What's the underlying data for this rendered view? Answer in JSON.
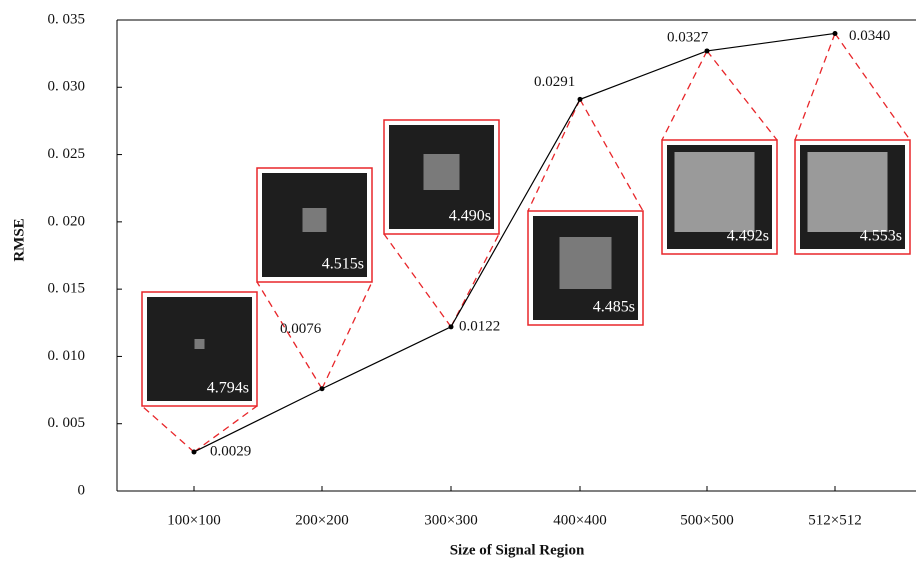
{
  "chart_data": {
    "type": "line",
    "x_label": "Size of Signal Region",
    "y_label": "RMSE",
    "categories": [
      "100×100",
      "200×200",
      "300×300",
      "400×400",
      "500×500",
      "512×512"
    ],
    "values": [
      0.0029,
      0.0076,
      0.0122,
      0.0291,
      0.0327,
      0.034
    ],
    "value_labels": [
      "0.0029",
      "0.0076",
      "0.0122",
      "0.0291",
      "0.0327",
      "0.0340"
    ],
    "inset_labels": [
      "4.794s",
      "4.515s",
      "4.490s",
      "4.485s",
      "4.492s",
      "4.553s"
    ],
    "color": "#000000",
    "inset_color": "#e8262a",
    "ylim": [
      0,
      0.035
    ],
    "yticks": [
      0,
      {
        "value": 0.005,
        "label": "0. 005"
      },
      {
        "value": 0.01,
        "label": "0. 010"
      },
      {
        "value": 0.015,
        "label": "0. 015"
      },
      {
        "value": 0.02,
        "label": "0. 020"
      },
      {
        "value": 0.025,
        "label": "0. 025"
      },
      {
        "value": 0.03,
        "label": "0. 030"
      },
      {
        "value": 0.035,
        "label": "0. 035"
      }
    ]
  }
}
